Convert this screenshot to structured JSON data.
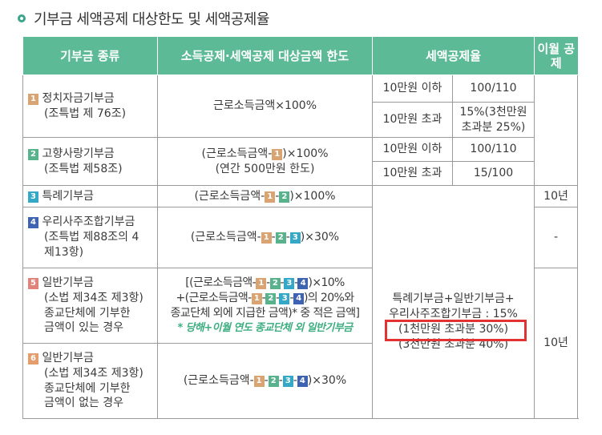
{
  "title": "기부금 세액공제 대상한도 및 세액공제율",
  "headers": [
    "기부금 종류",
    "소득공제·세액공제 대상금액 한도",
    "세액공제율",
    "이월 공제"
  ],
  "rows": [
    {
      "num": "1",
      "name1": "정치자금기부금",
      "name2": "(조특법 제 76조)",
      "limit": "근로소득금액×100%",
      "rates": [
        {
          "range": "10만원 이하",
          "rate": "100/110"
        },
        {
          "range": "10만원 초과",
          "rate1": "15%(3천만원",
          "rate2": "초과분 25%)"
        }
      ]
    },
    {
      "num": "2",
      "name1": "고향사랑기부금",
      "name2": "(조특법 제58조)",
      "limit_a": "(근로소득금액-",
      "limit_b": ")×100%",
      "limit2": "(연간 500만원 한도)",
      "rates": [
        {
          "range": "10만원 이하",
          "rate": "100/110"
        },
        {
          "range": "10만원 초과",
          "rate": "15/100"
        }
      ]
    },
    {
      "num": "3",
      "name1": "특례기부금",
      "limit_a": "(근로소득금액-",
      "limit_b": ")×100%",
      "carry": "10년"
    },
    {
      "num": "4",
      "name1": "우리사주조합기부금",
      "name2": "(조특법 제88조의 4",
      "name3": "제13항)",
      "limit_a": "(근로소득금액-",
      "limit_b": ")×30%",
      "carry": "-"
    },
    {
      "num": "5",
      "name1": "일반기부금",
      "name2": "(소법 제34조 제3항)",
      "name3": "종교단체에 기부한",
      "name4": "금액이 있는 경우",
      "l1a": "[(근로소득금액-",
      "l1b": ")×10%",
      "l2a": "+(근로소득금액-",
      "l2b": ")의 20%와",
      "l3": "종교단체 외에 지급한 금액)* 중 적은 금액]",
      "note": "* 당해+이월 연도 종교단체 외 일반기부금"
    },
    {
      "num": "6",
      "name1": "일반기부금",
      "name2": "(소법 제34조 제3항)",
      "name3": "종교단체에 기부한",
      "name4": "금액이 없는 경우",
      "limit_a": "(근로소득금액-",
      "limit_b": ")×30%",
      "carry": "10년"
    }
  ],
  "shared_rate": {
    "line1": "특례기부금+일반기부금+",
    "line2": "우리사주조합기부금 : 15%",
    "line3": "(1천만원 초과분 30%)",
    "line4": "(3천만원 초과분 40%)"
  },
  "colors": {
    "header_bg": "#5dba97",
    "highlight": "#e23232"
  }
}
